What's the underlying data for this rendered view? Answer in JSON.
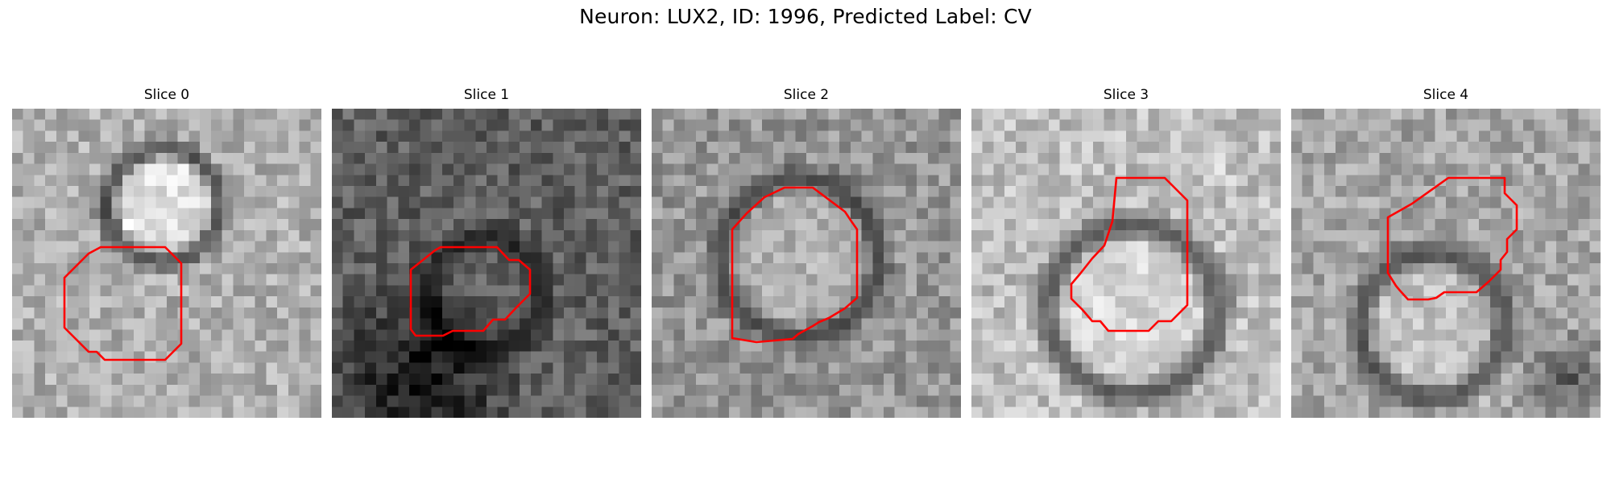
{
  "figure": {
    "title": "Neuron: LUX2, ID: 1996, Predicted Label: CV"
  },
  "panels": [
    {
      "title": "Slice 0",
      "roi_color": "#ff0000"
    },
    {
      "title": "Slice 1",
      "roi_color": "#ff0000"
    },
    {
      "title": "Slice 2",
      "roi_color": "#ff0000"
    },
    {
      "title": "Slice 3",
      "roi_color": "#ff0000"
    },
    {
      "title": "Slice 4",
      "roi_color": "#ff0000"
    }
  ]
}
